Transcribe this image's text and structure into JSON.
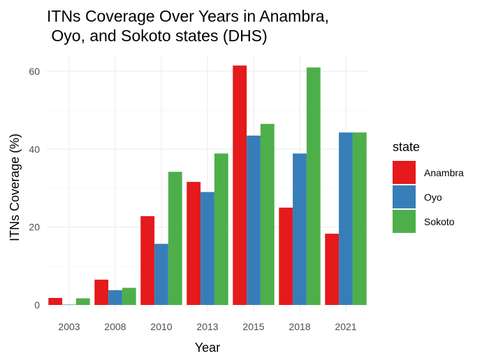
{
  "chart_data": {
    "type": "bar",
    "title_lines": [
      "ITNs Coverage Over Years in Anambra,",
      " Oyo, and Sokoto states (DHS)"
    ],
    "xlabel": "Year",
    "ylabel": "ITNs Coverage (%)",
    "categories": [
      "2003",
      "2008",
      "2010",
      "2013",
      "2015",
      "2018",
      "2021"
    ],
    "yticks": [
      0,
      20,
      40,
      60
    ],
    "ylim": [
      0,
      64
    ],
    "grid": true,
    "legend": {
      "title": "state",
      "position": "right"
    },
    "series": [
      {
        "name": "Anambra",
        "color": "#e41a1c",
        "values": [
          1.8,
          6.5,
          22.8,
          31.6,
          61.5,
          25.0,
          18.3
        ]
      },
      {
        "name": "Oyo",
        "color": "#377eb8",
        "values": [
          0.1,
          3.8,
          15.7,
          29.0,
          43.5,
          38.9,
          44.3
        ]
      },
      {
        "name": "Sokoto",
        "color": "#4daf4a",
        "values": [
          1.7,
          4.4,
          34.2,
          38.9,
          46.5,
          61.0,
          44.3
        ]
      }
    ]
  }
}
